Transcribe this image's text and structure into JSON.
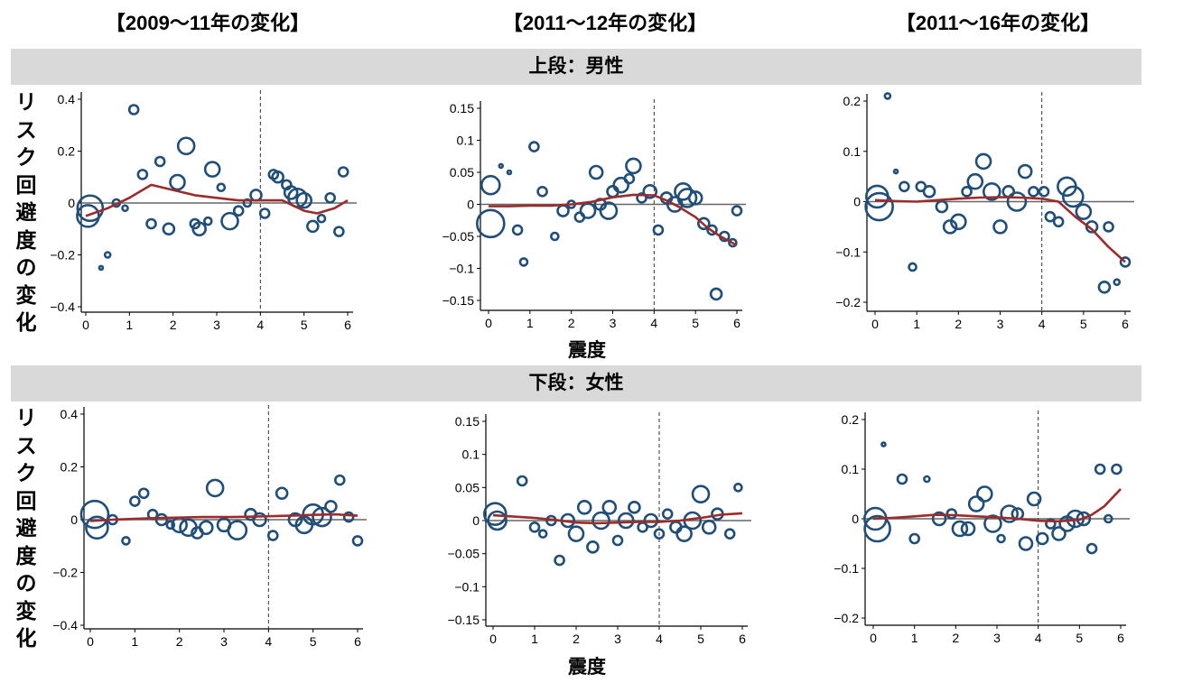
{
  "column_titles": [
    "【2009～11年の変化】",
    "【2011～12年の変化】",
    "【2011～16年の変化】"
  ],
  "row_bands": [
    "上段：男性",
    "下段：女性"
  ],
  "y_axis_label": "リスク回避度の変化",
  "x_axis_label": "震度",
  "colors": {
    "bubble": "#1f4e79",
    "fit": "#9b2c2c",
    "zero": "#666666",
    "band": "#d9d9d9"
  },
  "chart_data": [
    {
      "type": "scatter",
      "column": "【2009～11年の変化】",
      "row": "上段：男性",
      "xlim": [
        0,
        6
      ],
      "ylim": [
        -0.4,
        0.4
      ],
      "xticks": [
        0,
        1,
        2,
        3,
        4,
        5,
        6
      ],
      "yticks": [
        -0.4,
        -0.2,
        0,
        0.2,
        0.4
      ],
      "ytick_labels": [
        "−0.4",
        "−0.2",
        "0",
        "0.2",
        "0.4"
      ],
      "vline": 4,
      "points": [
        [
          0.05,
          -0.05,
          12
        ],
        [
          0.1,
          -0.02,
          14
        ],
        [
          0.35,
          -0.25,
          2
        ],
        [
          0.5,
          -0.2,
          3
        ],
        [
          0.7,
          0,
          4
        ],
        [
          0.9,
          -0.02,
          3
        ],
        [
          1.1,
          0.36,
          5
        ],
        [
          1.3,
          0.11,
          5
        ],
        [
          1.5,
          -0.08,
          5
        ],
        [
          1.7,
          0.16,
          5
        ],
        [
          1.9,
          -0.1,
          6
        ],
        [
          2.1,
          0.08,
          8
        ],
        [
          2.3,
          0.22,
          9
        ],
        [
          2.5,
          -0.08,
          5
        ],
        [
          2.6,
          -0.1,
          7
        ],
        [
          2.8,
          -0.07,
          4
        ],
        [
          2.9,
          0.13,
          8
        ],
        [
          3.1,
          0.06,
          4
        ],
        [
          3.3,
          -0.07,
          9
        ],
        [
          3.5,
          -0.03,
          5
        ],
        [
          3.7,
          0,
          4
        ],
        [
          3.9,
          0.03,
          6
        ],
        [
          4.1,
          -0.04,
          5
        ],
        [
          4.3,
          0.11,
          5
        ],
        [
          4.4,
          0.1,
          6
        ],
        [
          4.6,
          0.07,
          5
        ],
        [
          4.7,
          0.04,
          7
        ],
        [
          4.85,
          0.02,
          10
        ],
        [
          5,
          0.01,
          8
        ],
        [
          5.2,
          -0.09,
          6
        ],
        [
          5.4,
          -0.06,
          4
        ],
        [
          5.6,
          0.02,
          5
        ],
        [
          5.8,
          -0.11,
          5
        ],
        [
          5.9,
          0.12,
          5
        ]
      ],
      "fit": [
        [
          0,
          -0.05
        ],
        [
          0.5,
          -0.02
        ],
        [
          1,
          0.02
        ],
        [
          1.5,
          0.07
        ],
        [
          2,
          0.05
        ],
        [
          2.5,
          0.03
        ],
        [
          3,
          0.02
        ],
        [
          3.5,
          0.01
        ],
        [
          4,
          0.01
        ],
        [
          4.5,
          0.01
        ],
        [
          5,
          -0.03
        ],
        [
          5.3,
          -0.04
        ],
        [
          5.7,
          -0.02
        ],
        [
          6,
          0.01
        ]
      ]
    },
    {
      "type": "scatter",
      "column": "【2011～12年の変化】",
      "row": "上段：男性",
      "xlim": [
        0,
        6
      ],
      "ylim": [
        -0.15,
        0.15
      ],
      "xticks": [
        0,
        1,
        2,
        3,
        4,
        5,
        6
      ],
      "yticks": [
        -0.15,
        -0.1,
        -0.05,
        0,
        0.05,
        0.1,
        0.15
      ],
      "ytick_labels": [
        "−0.15",
        "−0.1",
        "−0.05",
        "0",
        "0.05",
        "0.1",
        "0.15"
      ],
      "vline": 4,
      "points": [
        [
          0.05,
          0.03,
          10
        ],
        [
          0.05,
          -0.03,
          15
        ],
        [
          0.3,
          0.06,
          2
        ],
        [
          0.5,
          0.05,
          2
        ],
        [
          0.7,
          -0.04,
          5
        ],
        [
          0.85,
          -0.09,
          4
        ],
        [
          1.1,
          0.09,
          5
        ],
        [
          1.3,
          0.02,
          5
        ],
        [
          1.6,
          -0.05,
          4
        ],
        [
          1.8,
          -0.01,
          6
        ],
        [
          2,
          0,
          4
        ],
        [
          2.2,
          -0.02,
          5
        ],
        [
          2.4,
          -0.01,
          8
        ],
        [
          2.6,
          0.05,
          7
        ],
        [
          2.7,
          0,
          6
        ],
        [
          2.9,
          -0.01,
          9
        ],
        [
          3,
          0.02,
          6
        ],
        [
          3.2,
          0.03,
          8
        ],
        [
          3.4,
          0.04,
          5
        ],
        [
          3.5,
          0.06,
          8
        ],
        [
          3.7,
          0.01,
          5
        ],
        [
          3.9,
          0.02,
          7
        ],
        [
          4.1,
          -0.04,
          5
        ],
        [
          4.3,
          0.01,
          6
        ],
        [
          4.5,
          0,
          8
        ],
        [
          4.7,
          0.02,
          9
        ],
        [
          4.8,
          0.01,
          10
        ],
        [
          5,
          0.01,
          7
        ],
        [
          5.2,
          -0.03,
          6
        ],
        [
          5.4,
          -0.04,
          5
        ],
        [
          5.5,
          -0.14,
          6
        ],
        [
          5.7,
          -0.05,
          5
        ],
        [
          5.9,
          -0.06,
          4
        ],
        [
          6,
          -0.01,
          5
        ]
      ],
      "fit": [
        [
          0,
          -0.003
        ],
        [
          0.5,
          -0.003
        ],
        [
          1,
          -0.002
        ],
        [
          1.5,
          -0.002
        ],
        [
          2,
          0
        ],
        [
          2.5,
          0.004
        ],
        [
          3,
          0.011
        ],
        [
          3.5,
          0.015
        ],
        [
          4,
          0.014
        ],
        [
          4.3,
          0.006
        ],
        [
          4.6,
          -0.004
        ],
        [
          5,
          -0.02
        ],
        [
          5.3,
          -0.037
        ],
        [
          5.6,
          -0.05
        ],
        [
          6,
          -0.064
        ]
      ]
    },
    {
      "type": "scatter",
      "column": "【2011～16年の変化】",
      "row": "上段：男性",
      "xlim": [
        0,
        6
      ],
      "ylim": [
        -0.2,
        0.2
      ],
      "xticks": [
        0,
        1,
        2,
        3,
        4,
        5,
        6
      ],
      "yticks": [
        -0.2,
        -0.1,
        0,
        0.1,
        0.2
      ],
      "ytick_labels": [
        "−0.2",
        "−0.1",
        "0",
        "0.1",
        "0.2"
      ],
      "vline": 4,
      "points": [
        [
          0.05,
          0.01,
          12
        ],
        [
          0.1,
          -0.01,
          15
        ],
        [
          0.3,
          0.21,
          3
        ],
        [
          0.5,
          0.06,
          2
        ],
        [
          0.7,
          0.03,
          5
        ],
        [
          0.9,
          -0.13,
          4
        ],
        [
          1.1,
          0.03,
          5
        ],
        [
          1.3,
          0.02,
          6
        ],
        [
          1.6,
          -0.01,
          6
        ],
        [
          1.8,
          -0.05,
          7
        ],
        [
          2,
          -0.04,
          8
        ],
        [
          2.2,
          0.02,
          5
        ],
        [
          2.4,
          0.04,
          8
        ],
        [
          2.6,
          0.08,
          8
        ],
        [
          2.8,
          0.02,
          9
        ],
        [
          3,
          -0.05,
          7
        ],
        [
          3.2,
          0.02,
          6
        ],
        [
          3.4,
          0,
          10
        ],
        [
          3.6,
          0.06,
          7
        ],
        [
          3.8,
          0.02,
          5
        ],
        [
          4.05,
          0.02,
          5
        ],
        [
          4.2,
          -0.03,
          5
        ],
        [
          4.4,
          -0.04,
          5
        ],
        [
          4.6,
          0.03,
          10
        ],
        [
          4.75,
          0.01,
          11
        ],
        [
          5,
          -0.02,
          8
        ],
        [
          5.2,
          -0.05,
          6
        ],
        [
          5.5,
          -0.17,
          6
        ],
        [
          5.6,
          -0.05,
          5
        ],
        [
          5.8,
          -0.16,
          3
        ],
        [
          6,
          -0.12,
          5
        ]
      ],
      "fit": [
        [
          0,
          0.003
        ],
        [
          0.5,
          0.001
        ],
        [
          1,
          0
        ],
        [
          1.5,
          0.003
        ],
        [
          2,
          0.006
        ],
        [
          2.5,
          0.008
        ],
        [
          3,
          0.009
        ],
        [
          3.5,
          0.008
        ],
        [
          4,
          0.006
        ],
        [
          4.4,
          0
        ],
        [
          4.8,
          -0.03
        ],
        [
          5.2,
          -0.055
        ],
        [
          5.6,
          -0.09
        ],
        [
          6,
          -0.12
        ]
      ]
    },
    {
      "type": "scatter",
      "column": "【2009～11年の変化】",
      "row": "下段：女性",
      "xlim": [
        0,
        6
      ],
      "ylim": [
        -0.4,
        0.4
      ],
      "xticks": [
        0,
        1,
        2,
        3,
        4,
        5,
        6
      ],
      "yticks": [
        -0.4,
        -0.2,
        0,
        0.2,
        0.4
      ],
      "ytick_labels": [
        "−0.4",
        "−0.2",
        "0",
        "0.2",
        "0.4"
      ],
      "vline": 4,
      "points": [
        [
          0.1,
          0.02,
          15
        ],
        [
          0.15,
          -0.03,
          12
        ],
        [
          0.5,
          0,
          5
        ],
        [
          0.8,
          -0.08,
          4
        ],
        [
          1,
          0.07,
          5
        ],
        [
          1.2,
          0.1,
          5
        ],
        [
          1.4,
          0.02,
          5
        ],
        [
          1.6,
          0,
          6
        ],
        [
          1.8,
          -0.02,
          4
        ],
        [
          2,
          -0.02,
          8
        ],
        [
          2.2,
          -0.03,
          9
        ],
        [
          2.4,
          -0.05,
          6
        ],
        [
          2.6,
          -0.03,
          7
        ],
        [
          2.8,
          0.12,
          9
        ],
        [
          3,
          -0.02,
          7
        ],
        [
          3.3,
          -0.04,
          10
        ],
        [
          3.6,
          0.02,
          6
        ],
        [
          3.8,
          0,
          7
        ],
        [
          4.1,
          -0.06,
          5
        ],
        [
          4.3,
          0.1,
          6
        ],
        [
          4.6,
          0,
          7
        ],
        [
          4.8,
          -0.02,
          9
        ],
        [
          5,
          0.02,
          11
        ],
        [
          5.2,
          0.01,
          10
        ],
        [
          5.4,
          0.05,
          6
        ],
        [
          5.6,
          0.15,
          5
        ],
        [
          5.8,
          0.01,
          5
        ],
        [
          6,
          -0.08,
          5
        ]
      ],
      "fit": [
        [
          0,
          -0.005
        ],
        [
          0.5,
          0
        ],
        [
          1,
          0.003
        ],
        [
          1.5,
          0.006
        ],
        [
          2,
          0.008
        ],
        [
          2.5,
          0.01
        ],
        [
          3,
          0.01
        ],
        [
          3.5,
          0.011
        ],
        [
          4,
          0.013
        ],
        [
          4.5,
          0.015
        ],
        [
          5,
          0.018
        ],
        [
          5.5,
          0.02
        ],
        [
          6,
          0.015
        ]
      ]
    },
    {
      "type": "scatter",
      "column": "【2011～12年の変化】",
      "row": "下段：女性",
      "xlim": [
        0,
        6
      ],
      "ylim": [
        -0.15,
        0.15
      ],
      "xticks": [
        0,
        1,
        2,
        3,
        4,
        5,
        6
      ],
      "yticks": [
        -0.15,
        -0.1,
        -0.05,
        0,
        0.05,
        0.1,
        0.15
      ],
      "ytick_labels": [
        "−0.15",
        "−0.1",
        "−0.05",
        "0",
        "0.05",
        "0.1",
        "0.15"
      ],
      "vline": 4,
      "points": [
        [
          0.05,
          0.01,
          12
        ],
        [
          0.1,
          0,
          10
        ],
        [
          0.7,
          0.06,
          5
        ],
        [
          1,
          -0.01,
          5
        ],
        [
          1.2,
          -0.02,
          4
        ],
        [
          1.4,
          0,
          5
        ],
        [
          1.6,
          -0.06,
          5
        ],
        [
          1.8,
          0,
          7
        ],
        [
          2,
          -0.02,
          8
        ],
        [
          2.2,
          0.02,
          7
        ],
        [
          2.4,
          -0.04,
          6
        ],
        [
          2.6,
          0,
          9
        ],
        [
          2.8,
          0.02,
          7
        ],
        [
          3,
          -0.03,
          5
        ],
        [
          3.2,
          0,
          8
        ],
        [
          3.4,
          0.02,
          6
        ],
        [
          3.6,
          -0.01,
          5
        ],
        [
          3.8,
          0,
          7
        ],
        [
          4,
          -0.02,
          5
        ],
        [
          4.2,
          0.01,
          5
        ],
        [
          4.4,
          -0.01,
          6
        ],
        [
          4.6,
          -0.02,
          8
        ],
        [
          4.8,
          0,
          9
        ],
        [
          5,
          0.04,
          9
        ],
        [
          5.2,
          -0.01,
          7
        ],
        [
          5.4,
          0.01,
          6
        ],
        [
          5.7,
          -0.02,
          5
        ],
        [
          5.9,
          0.05,
          4
        ]
      ],
      "fit": [
        [
          0,
          0.008
        ],
        [
          0.5,
          0.006
        ],
        [
          1,
          0.004
        ],
        [
          1.5,
          0.001
        ],
        [
          2,
          -0.003
        ],
        [
          2.5,
          -0.004
        ],
        [
          3,
          -0.003
        ],
        [
          3.5,
          -0.002
        ],
        [
          4,
          -0.002
        ],
        [
          4.5,
          0
        ],
        [
          5,
          0.004
        ],
        [
          5.5,
          0.009
        ],
        [
          6,
          0.011
        ]
      ]
    },
    {
      "type": "scatter",
      "column": "【2011～16年の変化】",
      "row": "下段：女性",
      "xlim": [
        0,
        6
      ],
      "ylim": [
        -0.2,
        0.2
      ],
      "xticks": [
        0,
        1,
        2,
        3,
        4,
        5,
        6
      ],
      "yticks": [
        -0.2,
        -0.1,
        0,
        0.1,
        0.2
      ],
      "ytick_labels": [
        "−0.2",
        "−0.1",
        "0",
        "0.1",
        "0.2"
      ],
      "vline": 4,
      "points": [
        [
          0.05,
          0,
          12
        ],
        [
          0.1,
          -0.02,
          14
        ],
        [
          0.25,
          0.15,
          2
        ],
        [
          0.7,
          0.08,
          5
        ],
        [
          1,
          -0.04,
          5
        ],
        [
          1.3,
          0.08,
          3
        ],
        [
          1.6,
          0,
          7
        ],
        [
          1.9,
          0.01,
          5
        ],
        [
          2.1,
          -0.02,
          8
        ],
        [
          2.3,
          -0.02,
          7
        ],
        [
          2.5,
          0.03,
          8
        ],
        [
          2.7,
          0.05,
          8
        ],
        [
          2.9,
          -0.01,
          9
        ],
        [
          3.1,
          -0.04,
          4
        ],
        [
          3.3,
          0.01,
          9
        ],
        [
          3.5,
          0.01,
          6
        ],
        [
          3.7,
          -0.05,
          7
        ],
        [
          3.9,
          0.04,
          7
        ],
        [
          4.1,
          -0.04,
          6
        ],
        [
          4.3,
          -0.01,
          5
        ],
        [
          4.5,
          -0.03,
          7
        ],
        [
          4.7,
          -0.01,
          8
        ],
        [
          4.9,
          0,
          9
        ],
        [
          5.1,
          0,
          7
        ],
        [
          5.3,
          -0.06,
          5
        ],
        [
          5.5,
          0.1,
          5
        ],
        [
          5.7,
          0,
          4
        ],
        [
          5.9,
          0.1,
          5
        ]
      ],
      "fit": [
        [
          0,
          0
        ],
        [
          0.5,
          0.002
        ],
        [
          1,
          0.005
        ],
        [
          1.5,
          0.008
        ],
        [
          2,
          0.007
        ],
        [
          2.5,
          0.005
        ],
        [
          3,
          0.003
        ],
        [
          3.5,
          0
        ],
        [
          4,
          -0.004
        ],
        [
          4.5,
          -0.005
        ],
        [
          5,
          -0.002
        ],
        [
          5.3,
          0.008
        ],
        [
          5.6,
          0.025
        ],
        [
          6,
          0.06
        ]
      ]
    }
  ]
}
